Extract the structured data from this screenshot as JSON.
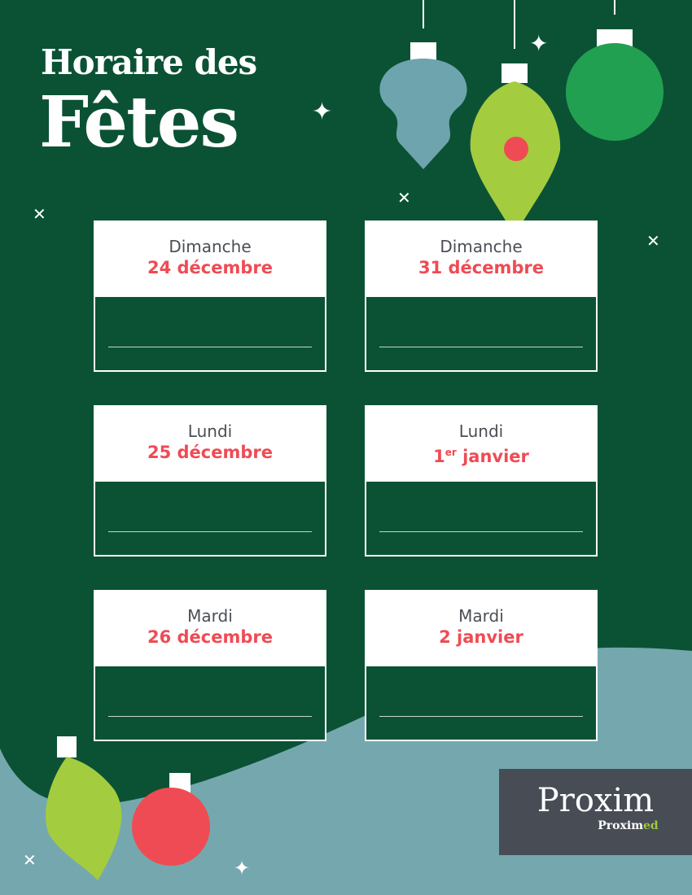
{
  "title": {
    "line1": "Horaire des",
    "line2": "Fêtes"
  },
  "colors": {
    "background": "#0b5235",
    "accent": "#ef4b54",
    "teal": "#75a8ae",
    "lime": "#a4cc3f"
  },
  "cards": [
    {
      "day": "Dimanche",
      "date": "24 décembre",
      "hours": ""
    },
    {
      "day": "Dimanche",
      "date": "31 décembre",
      "hours": ""
    },
    {
      "day": "Lundi",
      "date": "25 décembre",
      "hours": ""
    },
    {
      "day": "Lundi",
      "date_num": "1",
      "date_sup": "er",
      "date_rest": " janvier",
      "hours": ""
    },
    {
      "day": "Mardi",
      "date": "26 décembre",
      "hours": ""
    },
    {
      "day": "Mardi",
      "date": "2 janvier",
      "hours": ""
    }
  ],
  "logo": {
    "name": "Proxim",
    "sub_a": "Proxim",
    "sub_b": "ed"
  }
}
